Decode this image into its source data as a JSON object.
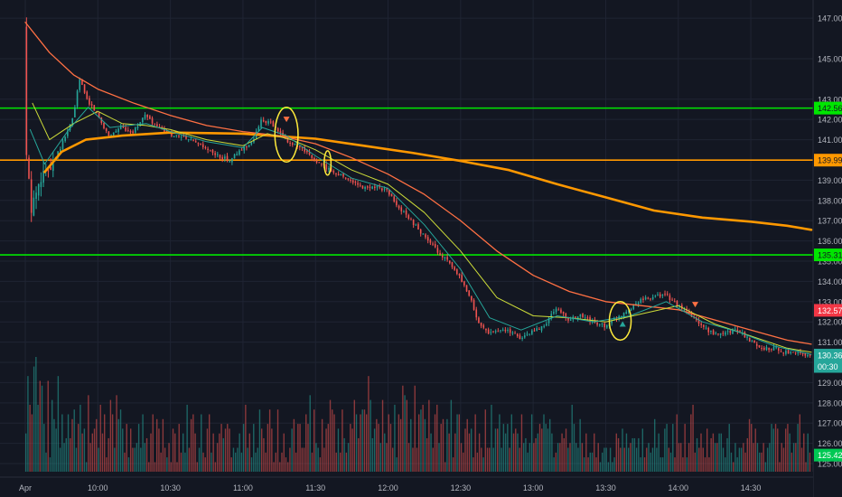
{
  "chart_data": {
    "type": "candlestick",
    "title": "",
    "y_axis": {
      "side": "right",
      "ylim": [
        124.6,
        147.9
      ],
      "ticks": [
        "147.00",
        "145.00",
        "143.00",
        "142.00",
        "141.00",
        "140.00",
        "139.00",
        "138.00",
        "137.00",
        "136.00",
        "135.00",
        "134.00",
        "133.00",
        "132.00",
        "131.00",
        "130.00",
        "129.00",
        "128.00",
        "127.00",
        "126.00",
        "125.00"
      ]
    },
    "x_axis": {
      "time_range": [
        "09:30",
        "14:55"
      ],
      "ticks": [
        {
          "t": "09:30",
          "label": "Apr"
        },
        {
          "t": "10:00",
          "label": "10:00"
        },
        {
          "t": "10:30",
          "label": "10:30"
        },
        {
          "t": "11:00",
          "label": "11:00"
        },
        {
          "t": "11:30",
          "label": "11:30"
        },
        {
          "t": "12:00",
          "label": "12:00"
        },
        {
          "t": "12:30",
          "label": "12:30"
        },
        {
          "t": "13:00",
          "label": "13:00"
        },
        {
          "t": "13:30",
          "label": "13:30"
        },
        {
          "t": "14:00",
          "label": "14:00"
        },
        {
          "t": "14:30",
          "label": "14:30"
        }
      ]
    },
    "horizontal_levels": [
      {
        "price": 142.56,
        "label": "142.56",
        "color": "#00e600"
      },
      {
        "price": 139.99,
        "label": "139.99",
        "color": "#ff9800"
      },
      {
        "price": 135.31,
        "label": "135.31",
        "color": "#00e600"
      }
    ],
    "axis_badges": [
      {
        "price": 132.57,
        "label": "132.57",
        "color": "#f23645"
      },
      {
        "price": 130.36,
        "label": "130.36",
        "color": "#26a69a"
      },
      {
        "price": 129.8,
        "label": "00:30",
        "color": "#26a69a"
      },
      {
        "price": 125.42,
        "label": "125.42",
        "color": "#00c853"
      }
    ],
    "price_path": [
      [
        "09:30",
        146.5
      ],
      [
        "09:31",
        140.2
      ],
      [
        "09:33",
        137.5
      ],
      [
        "09:36",
        139.0
      ],
      [
        "09:40",
        139.6
      ],
      [
        "09:45",
        140.6
      ],
      [
        "09:50",
        142.0
      ],
      [
        "09:53",
        144.0
      ],
      [
        "09:56",
        143.0
      ],
      [
        "10:00",
        142.3
      ],
      [
        "10:05",
        141.2
      ],
      [
        "10:10",
        141.6
      ],
      [
        "10:15",
        141.4
      ],
      [
        "10:20",
        142.2
      ],
      [
        "10:25",
        141.6
      ],
      [
        "10:30",
        141.3
      ],
      [
        "10:40",
        140.9
      ],
      [
        "10:50",
        140.2
      ],
      [
        "10:55",
        140.0
      ],
      [
        "11:00",
        140.5
      ],
      [
        "11:05",
        141.0
      ],
      [
        "11:08",
        142.0
      ],
      [
        "11:12",
        141.8
      ],
      [
        "11:18",
        141.0
      ],
      [
        "11:25",
        140.5
      ],
      [
        "11:30",
        140.0
      ],
      [
        "11:35",
        139.6
      ],
      [
        "11:40",
        139.3
      ],
      [
        "11:45",
        139.0
      ],
      [
        "11:50",
        138.6
      ],
      [
        "11:55",
        138.7
      ],
      [
        "12:00",
        138.5
      ],
      [
        "12:05",
        137.6
      ],
      [
        "12:10",
        137.0
      ],
      [
        "12:15",
        136.3
      ],
      [
        "12:20",
        135.6
      ],
      [
        "12:25",
        135.0
      ],
      [
        "12:30",
        134.2
      ],
      [
        "12:35",
        133.0
      ],
      [
        "12:38",
        131.9
      ],
      [
        "12:42",
        131.5
      ],
      [
        "12:50",
        131.6
      ],
      [
        "12:55",
        131.2
      ],
      [
        "13:00",
        131.5
      ],
      [
        "13:05",
        131.8
      ],
      [
        "13:10",
        132.7
      ],
      [
        "13:15",
        132.1
      ],
      [
        "13:20",
        132.3
      ],
      [
        "13:25",
        132.0
      ],
      [
        "13:30",
        131.8
      ],
      [
        "13:35",
        132.2
      ],
      [
        "13:40",
        132.6
      ],
      [
        "13:45",
        133.1
      ],
      [
        "13:50",
        133.2
      ],
      [
        "13:55",
        133.4
      ],
      [
        "14:00",
        132.8
      ],
      [
        "14:05",
        132.4
      ],
      [
        "14:10",
        131.8
      ],
      [
        "14:15",
        131.4
      ],
      [
        "14:20",
        131.5
      ],
      [
        "14:25",
        131.6
      ],
      [
        "14:30",
        131.1
      ],
      [
        "14:35",
        130.7
      ],
      [
        "14:40",
        130.7
      ],
      [
        "14:45",
        130.5
      ],
      [
        "14:50",
        130.4
      ],
      [
        "14:55",
        130.36
      ]
    ],
    "moving_averages": [
      {
        "color": "#ff9800",
        "width": 2.6,
        "points": [
          [
            "09:38",
            139.4
          ],
          [
            "09:45",
            140.4
          ],
          [
            "09:55",
            141.0
          ],
          [
            "10:10",
            141.2
          ],
          [
            "10:30",
            141.35
          ],
          [
            "11:00",
            141.3
          ],
          [
            "11:30",
            141.05
          ],
          [
            "11:50",
            140.7
          ],
          [
            "12:10",
            140.35
          ],
          [
            "12:30",
            139.95
          ],
          [
            "12:50",
            139.5
          ],
          [
            "13:10",
            138.8
          ],
          [
            "13:30",
            138.15
          ],
          [
            "13:50",
            137.5
          ],
          [
            "14:10",
            137.15
          ],
          [
            "14:30",
            136.95
          ],
          [
            "14:45",
            136.75
          ],
          [
            "14:55",
            136.55
          ]
        ]
      },
      {
        "color": "#ff7043",
        "width": 1.3,
        "points": [
          [
            "09:30",
            146.8
          ],
          [
            "09:40",
            145.3
          ],
          [
            "09:50",
            144.2
          ],
          [
            "10:00",
            143.5
          ],
          [
            "10:15",
            142.8
          ],
          [
            "10:30",
            142.2
          ],
          [
            "10:45",
            141.7
          ],
          [
            "11:00",
            141.4
          ],
          [
            "11:15",
            141.2
          ],
          [
            "11:30",
            140.8
          ],
          [
            "11:45",
            140.1
          ],
          [
            "12:00",
            139.3
          ],
          [
            "12:15",
            138.3
          ],
          [
            "12:30",
            137.0
          ],
          [
            "12:45",
            135.5
          ],
          [
            "13:00",
            134.3
          ],
          [
            "13:15",
            133.5
          ],
          [
            "13:30",
            133.0
          ],
          [
            "13:45",
            132.8
          ],
          [
            "14:00",
            132.6
          ],
          [
            "14:15",
            132.1
          ],
          [
            "14:30",
            131.6
          ],
          [
            "14:45",
            131.1
          ],
          [
            "14:55",
            130.9
          ]
        ]
      },
      {
        "color": "#cddc39",
        "width": 1.0,
        "points": [
          [
            "09:33",
            142.8
          ],
          [
            "09:40",
            141.0
          ],
          [
            "09:50",
            141.8
          ],
          [
            "10:00",
            142.4
          ],
          [
            "10:10",
            141.8
          ],
          [
            "10:20",
            141.7
          ],
          [
            "10:30",
            141.5
          ],
          [
            "10:45",
            141.0
          ],
          [
            "11:00",
            140.7
          ],
          [
            "11:10",
            141.3
          ],
          [
            "11:20",
            141.0
          ],
          [
            "11:30",
            140.5
          ],
          [
            "11:45",
            139.5
          ],
          [
            "12:00",
            138.8
          ],
          [
            "12:15",
            137.4
          ],
          [
            "12:30",
            135.5
          ],
          [
            "12:45",
            133.2
          ],
          [
            "13:00",
            132.3
          ],
          [
            "13:15",
            132.2
          ],
          [
            "13:30",
            132.0
          ],
          [
            "13:45",
            132.4
          ],
          [
            "14:00",
            132.8
          ],
          [
            "14:15",
            131.9
          ],
          [
            "14:30",
            131.3
          ],
          [
            "14:45",
            130.7
          ],
          [
            "14:55",
            130.5
          ]
        ]
      },
      {
        "color": "#26a69a",
        "width": 1.0,
        "points": [
          [
            "09:32",
            141.5
          ],
          [
            "09:38",
            139.8
          ],
          [
            "09:48",
            141.5
          ],
          [
            "09:56",
            142.6
          ],
          [
            "10:05",
            141.6
          ],
          [
            "10:20",
            141.8
          ],
          [
            "10:30",
            141.4
          ],
          [
            "10:45",
            140.9
          ],
          [
            "11:00",
            140.6
          ],
          [
            "11:08",
            141.6
          ],
          [
            "11:18",
            141.2
          ],
          [
            "11:30",
            140.2
          ],
          [
            "11:45",
            139.1
          ],
          [
            "12:00",
            138.6
          ],
          [
            "12:15",
            136.8
          ],
          [
            "12:30",
            134.6
          ],
          [
            "12:42",
            132.2
          ],
          [
            "12:55",
            131.6
          ],
          [
            "13:10",
            132.3
          ],
          [
            "13:25",
            132.0
          ],
          [
            "13:40",
            132.3
          ],
          [
            "13:55",
            133.0
          ],
          [
            "14:10",
            132.0
          ],
          [
            "14:25",
            131.5
          ],
          [
            "14:40",
            130.8
          ],
          [
            "14:55",
            130.4
          ]
        ]
      }
    ],
    "volume": [
      8,
      20,
      14,
      12,
      22,
      24,
      14,
      19,
      18,
      10,
      4,
      19,
      3,
      15,
      11,
      9,
      20,
      5,
      12,
      6,
      7,
      12,
      7,
      11,
      13,
      5,
      10,
      14,
      8,
      9,
      2,
      16,
      6,
      8,
      9,
      11,
      5,
      14,
      8,
      12,
      3,
      7,
      15,
      12,
      5,
      16,
      11,
      13,
      9,
      4,
      10,
      3,
      9,
      5,
      5,
      6,
      10,
      5,
      12,
      6,
      7,
      2,
      8,
      12,
      2,
      11,
      9,
      4,
      11,
      5,
      3,
      6,
      2,
      9,
      8,
      2,
      10,
      4,
      8,
      4,
      14,
      5,
      11,
      12,
      8,
      2,
      5,
      12,
      4,
      3,
      9,
      12,
      4,
      8,
      2,
      6,
      8,
      10,
      7,
      9,
      10,
      9,
      3,
      5,
      4,
      5,
      8,
      4,
      10,
      14,
      5,
      8,
      3,
      10,
      4,
      5,
      13,
      9,
      7,
      4,
      10,
      13,
      9,
      2,
      4,
      13,
      2,
      4,
      8,
      3,
      2,
      5,
      9,
      11,
      4,
      10,
      10,
      5,
      5,
      12,
      10,
      16,
      4,
      13,
      6,
      5,
      3,
      11,
      5,
      9,
      10,
      15,
      13,
      12,
      4,
      9,
      4,
      13,
      7,
      4,
      6,
      10,
      9,
      15,
      12,
      7,
      12,
      13,
      13,
      12,
      20,
      15,
      7,
      9,
      11,
      10,
      6,
      15,
      8,
      6,
      12,
      10,
      5,
      14,
      3,
      12,
      11,
      18,
      16,
      15,
      6,
      11,
      5,
      18,
      5,
      12,
      13,
      14,
      11,
      7,
      15,
      8,
      5,
      12,
      14,
      6,
      10,
      11,
      2,
      11,
      8,
      15,
      3,
      8,
      12,
      12,
      6,
      4,
      9,
      11,
      8,
      9,
      3,
      12,
      4,
      8,
      5,
      3,
      13,
      5,
      5,
      14,
      5,
      9,
      9,
      12,
      5,
      10,
      8,
      10,
      5,
      12,
      8,
      9,
      8,
      5,
      12,
      6,
      7,
      4,
      6,
      12,
      6,
      7,
      8,
      10,
      9,
      12,
      10,
      9,
      11,
      8,
      3,
      4,
      6,
      6,
      8,
      7,
      9,
      5,
      6,
      14,
      10,
      6,
      5,
      11,
      6,
      3,
      8,
      3,
      4,
      4,
      8,
      3,
      6,
      2,
      4,
      5,
      5,
      2,
      5,
      2,
      3,
      8,
      7,
      5,
      9,
      5,
      8,
      5,
      6,
      7,
      7,
      5,
      7,
      3,
      9,
      3,
      5,
      6,
      4,
      5,
      11,
      5,
      8,
      3,
      3,
      9,
      10,
      5,
      4,
      10,
      3,
      12,
      6,
      6,
      3,
      10,
      3,
      6,
      12,
      14,
      4,
      7,
      5,
      8,
      5,
      3,
      9,
      3,
      7,
      8,
      6,
      6,
      8,
      8,
      5,
      3,
      7,
      10,
      4,
      2,
      6,
      3,
      5,
      5,
      6,
      4,
      7,
      11,
      10,
      6,
      9,
      6,
      4,
      4,
      6,
      2,
      5,
      6,
      10,
      9,
      10,
      9,
      2,
      6,
      5,
      9,
      10,
      8,
      4,
      6,
      6,
      10,
      12,
      5,
      8,
      2,
      8,
      4
    ],
    "annotations": [
      {
        "type": "circle",
        "t": "11:18",
        "price": 141.25,
        "rx_min": 4.8,
        "ry_price": 1.35
      },
      {
        "type": "circle",
        "t": "11:35",
        "price": 139.85,
        "rx_min": 1.4,
        "ry_price": 0.6
      },
      {
        "type": "circle",
        "t": "13:36",
        "price": 132.05,
        "rx_min": 4.5,
        "ry_price": 0.95
      },
      {
        "type": "arrow-down",
        "t": "11:18",
        "price": 142.0,
        "color": "#ff7043"
      },
      {
        "type": "arrow-down",
        "t": "14:07",
        "price": 132.85,
        "color": "#ff7043"
      },
      {
        "type": "arrow-up",
        "t": "13:37",
        "price": 131.9,
        "color": "#26a69a"
      }
    ],
    "colors": {
      "background": "#131722",
      "grid": "#1f2433",
      "up": "#26a69a",
      "down": "#ef5350",
      "axis_text": "#b2b5be",
      "annotation": "#ffeb3b"
    }
  }
}
